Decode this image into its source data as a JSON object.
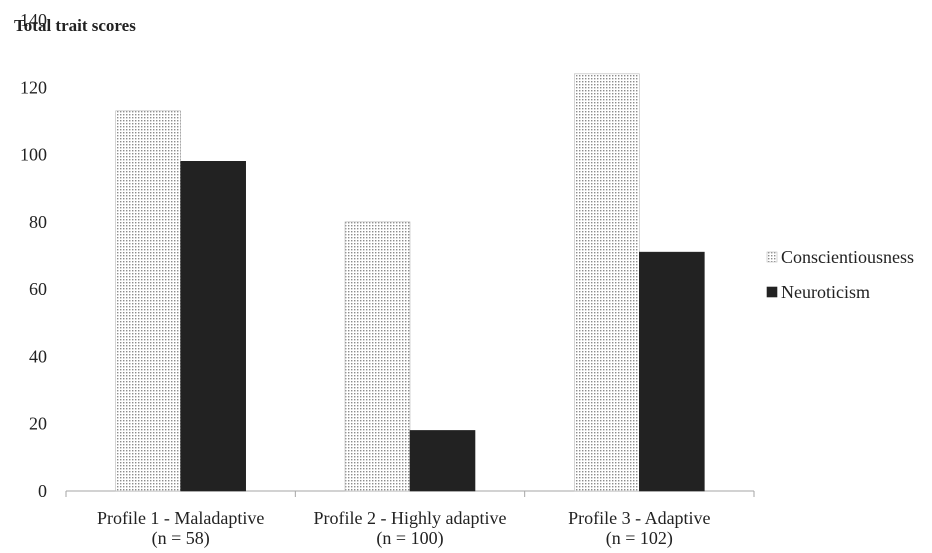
{
  "chart_data": {
    "type": "bar",
    "title": "",
    "ylabel": "Total trait scores",
    "xlabel": "",
    "ylim": [
      0,
      140
    ],
    "yticks": [
      0,
      20,
      40,
      60,
      80,
      100,
      120,
      140
    ],
    "grid": false,
    "legend_position": "right",
    "categories": [
      [
        "Profile 1 - Maladaptive",
        "(n = 58)"
      ],
      [
        "Profile 2 - Highly adaptive",
        "(n = 100)"
      ],
      [
        "Profile 3 - Adaptive",
        "(n = 102)"
      ]
    ],
    "series": [
      {
        "name": "Conscientiousness",
        "values": [
          113,
          80,
          124
        ],
        "fill": "dotted",
        "color": "#9a9a9a"
      },
      {
        "name": "Neuroticism",
        "values": [
          98,
          18,
          71
        ],
        "fill": "solid",
        "color": "#222222"
      }
    ]
  }
}
